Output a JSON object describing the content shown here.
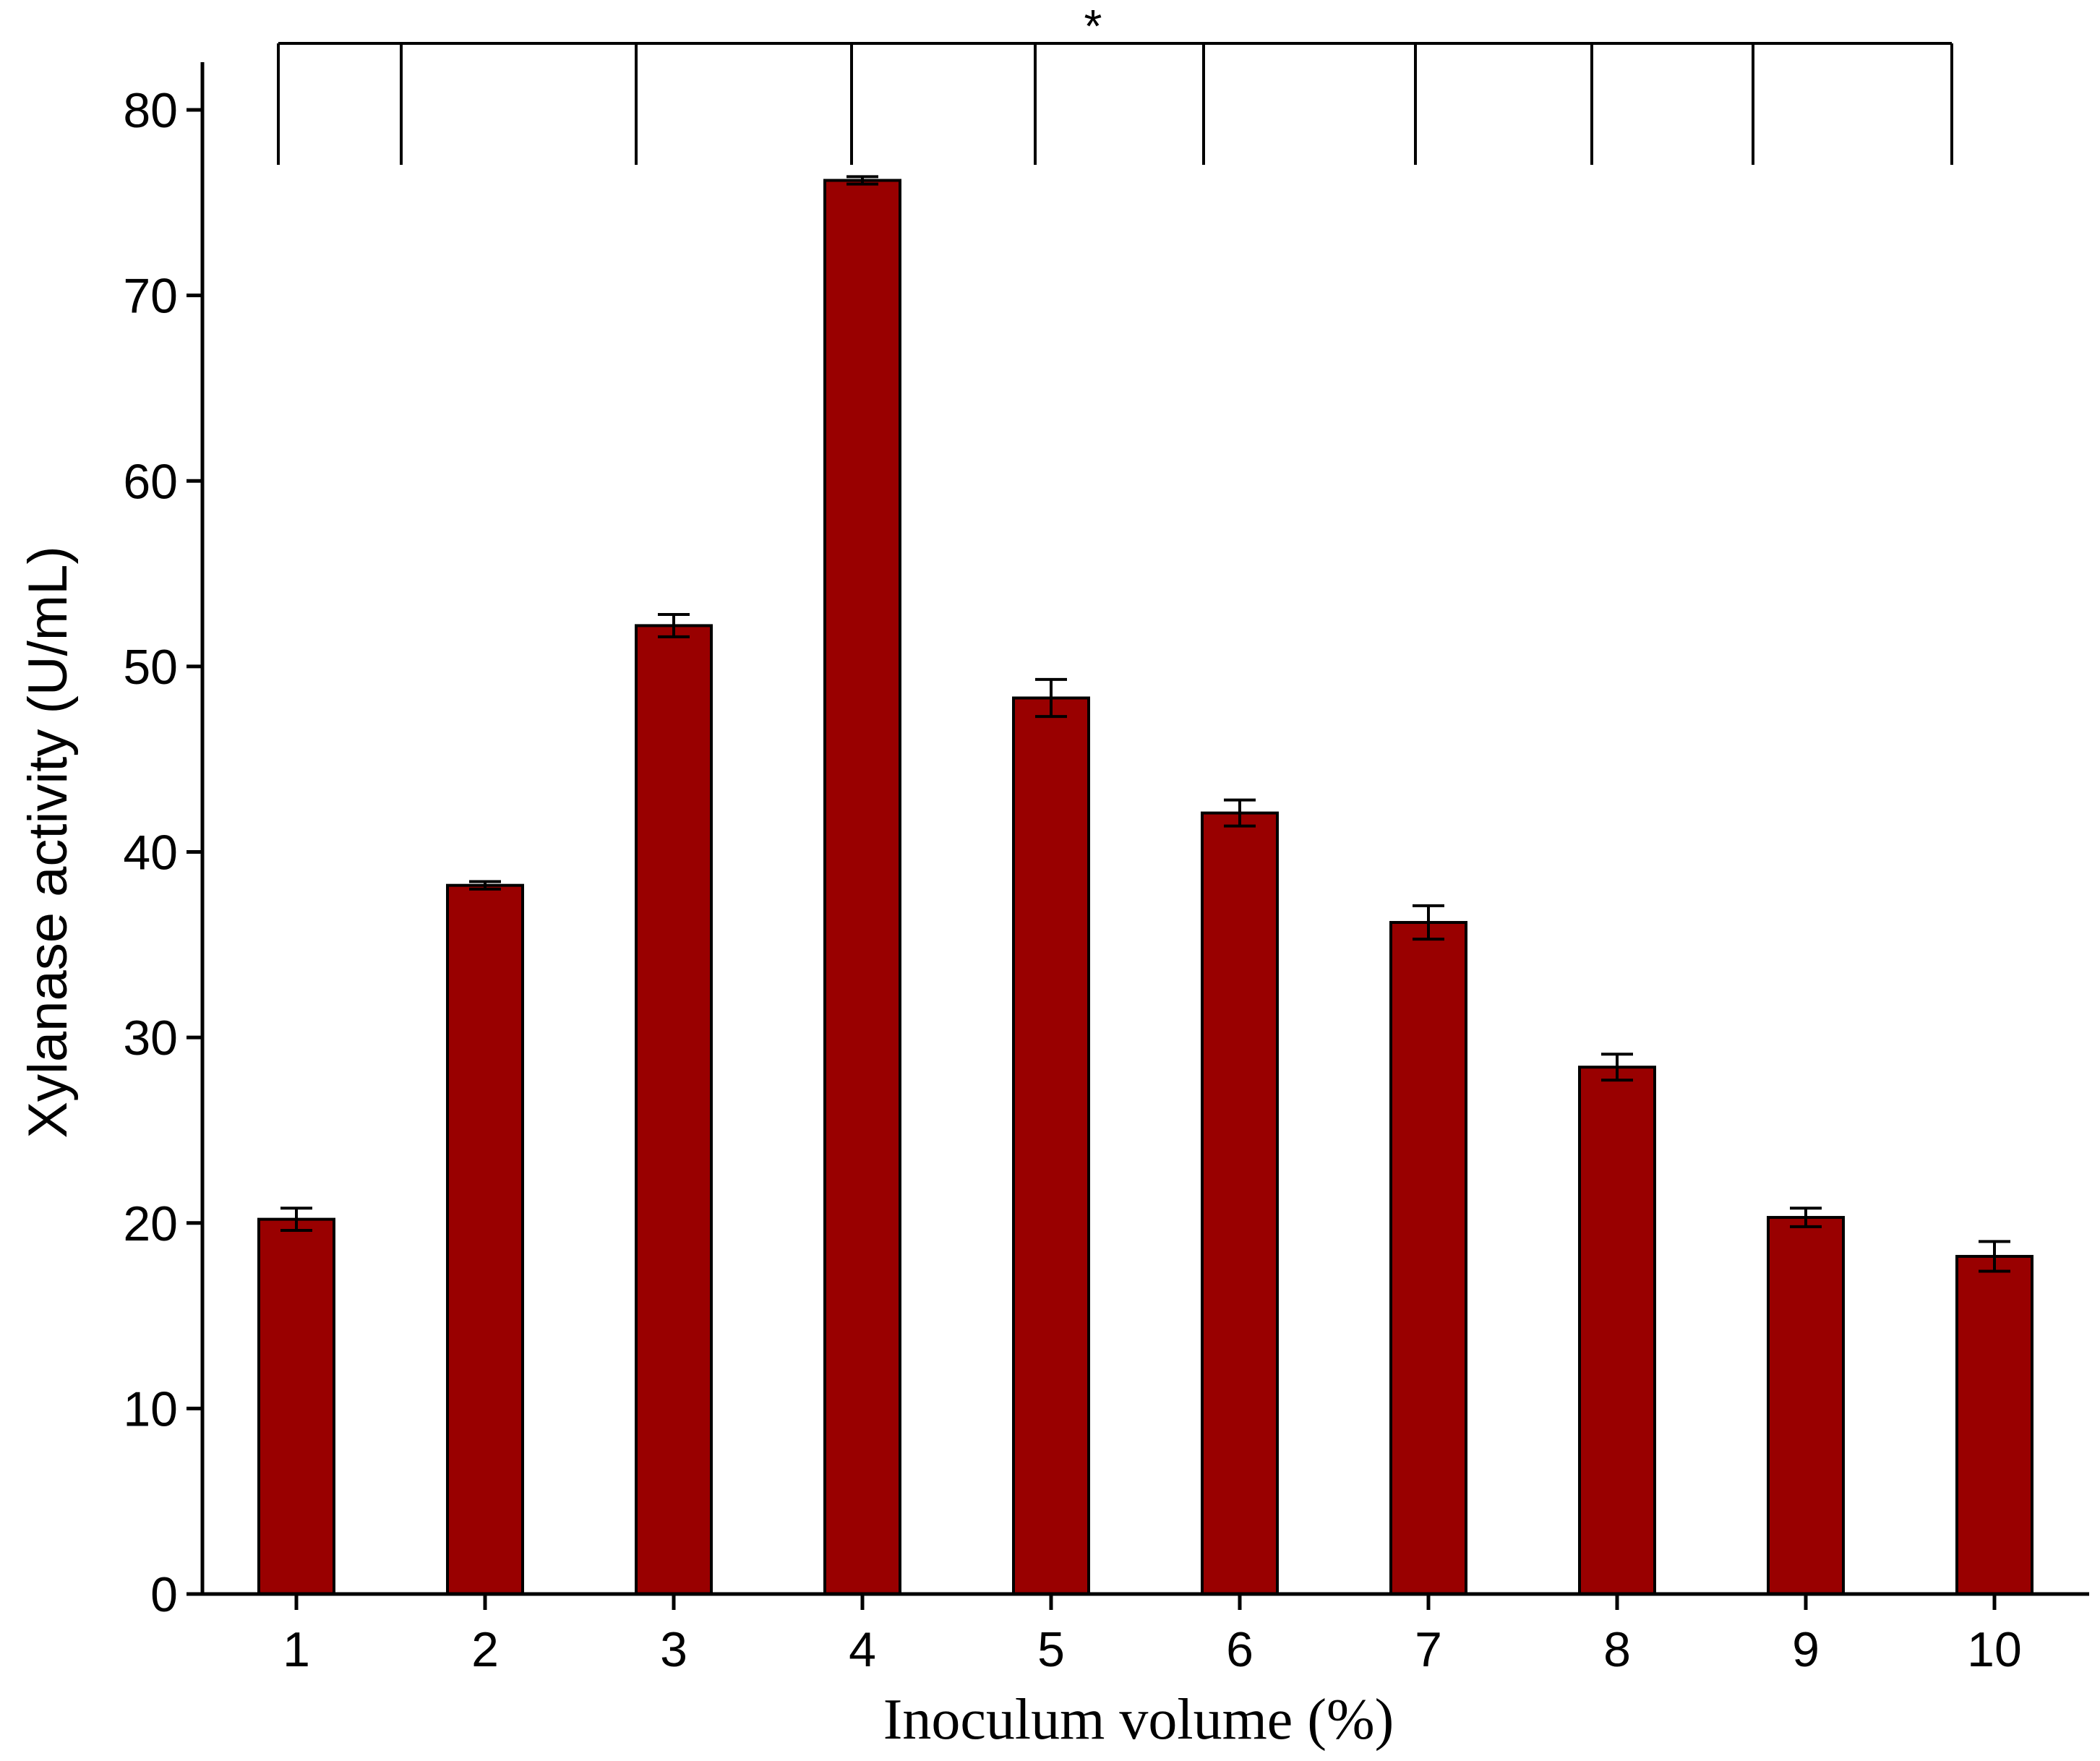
{
  "chart_data": {
    "type": "bar",
    "categories": [
      "1",
      "2",
      "3",
      "4",
      "5",
      "6",
      "7",
      "8",
      "9",
      "10"
    ],
    "values": [
      20.2,
      38.2,
      52.2,
      76.2,
      48.3,
      42.1,
      36.2,
      28.4,
      20.3,
      18.2
    ],
    "errors": [
      0.6,
      0.2,
      0.6,
      0.2,
      1.0,
      0.7,
      0.9,
      0.7,
      0.5,
      0.8
    ],
    "xlabel": "Inoculum volume (%)",
    "ylabel": "Xylanase activity (U/mL)",
    "ylim": [
      0,
      80
    ],
    "yticks": [
      0,
      10,
      20,
      30,
      40,
      50,
      60,
      70,
      80
    ],
    "bar_color": "#990000",
    "grid": false,
    "significance_marker": "*"
  }
}
